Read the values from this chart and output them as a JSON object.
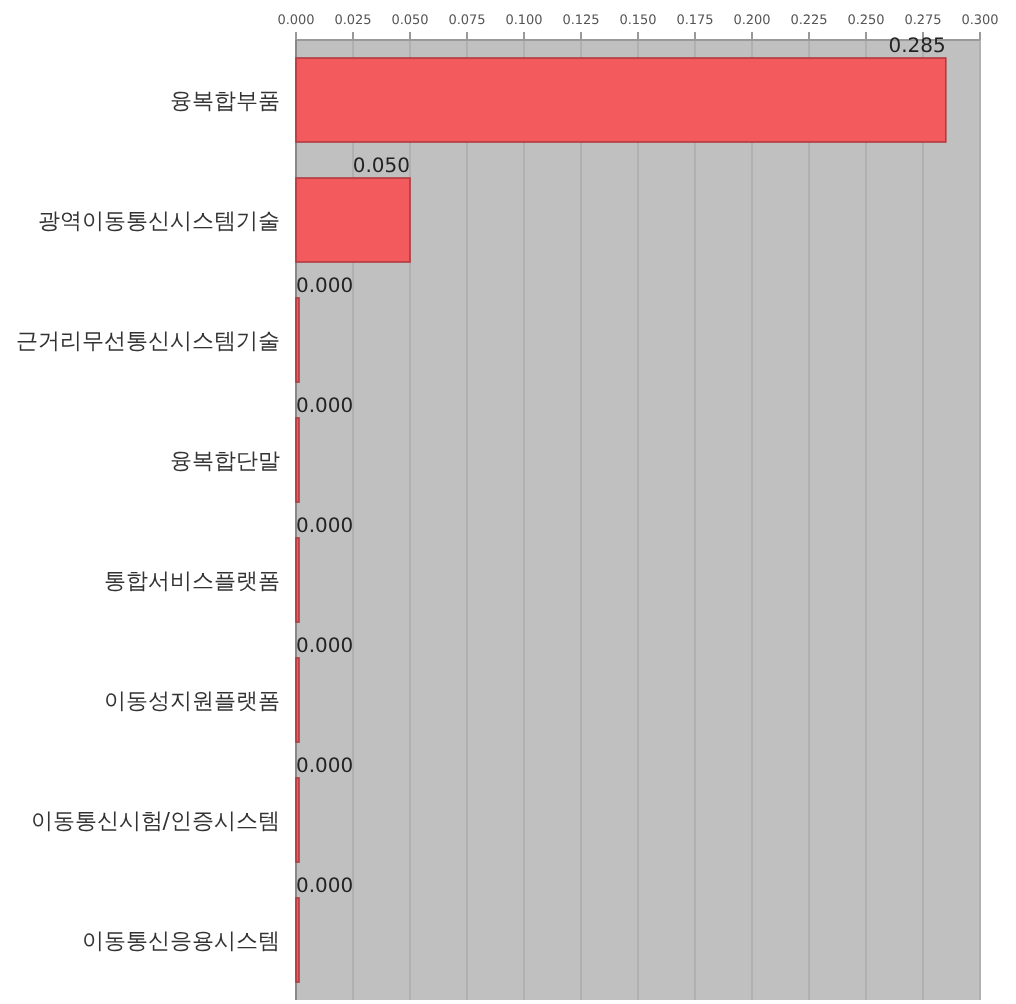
{
  "chart_data": {
    "type": "bar",
    "orientation": "horizontal",
    "categories": [
      "융복합부품",
      "광역이동통신시스템기술",
      "근거리무선통신시스템기술",
      "융복합단말",
      "통합서비스플랫폼",
      "이동성지원플랫폼",
      "이동통신시험/인증시스템",
      "이동통신응용시스템"
    ],
    "values": [
      0.285,
      0.05,
      0,
      0,
      0,
      0,
      0,
      0
    ],
    "value_labels": [
      "0.285",
      "0.050",
      "0.000",
      "0.000",
      "0.000",
      "0.000",
      "0.000",
      "0.000"
    ],
    "color": "#f25a5e",
    "xlim": [
      0,
      0.3
    ],
    "xticks": [
      {
        "value": 0,
        "label": "0.000"
      },
      {
        "value": 0.025,
        "label": "0.025"
      },
      {
        "value": 0.05,
        "label": "0.050"
      },
      {
        "value": 0.075,
        "label": "0.075"
      },
      {
        "value": 0.1,
        "label": "0.100"
      },
      {
        "value": 0.125,
        "label": "0.125"
      },
      {
        "value": 0.15,
        "label": "0.150"
      },
      {
        "value": 0.175,
        "label": "0.175"
      },
      {
        "value": 0.2,
        "label": "0.200"
      },
      {
        "value": 0.225,
        "label": "0.225"
      },
      {
        "value": 0.25,
        "label": "0.250"
      },
      {
        "value": 0.275,
        "label": "0.275"
      },
      {
        "value": 0.3,
        "label": "0.300"
      }
    ],
    "grid": "x"
  }
}
